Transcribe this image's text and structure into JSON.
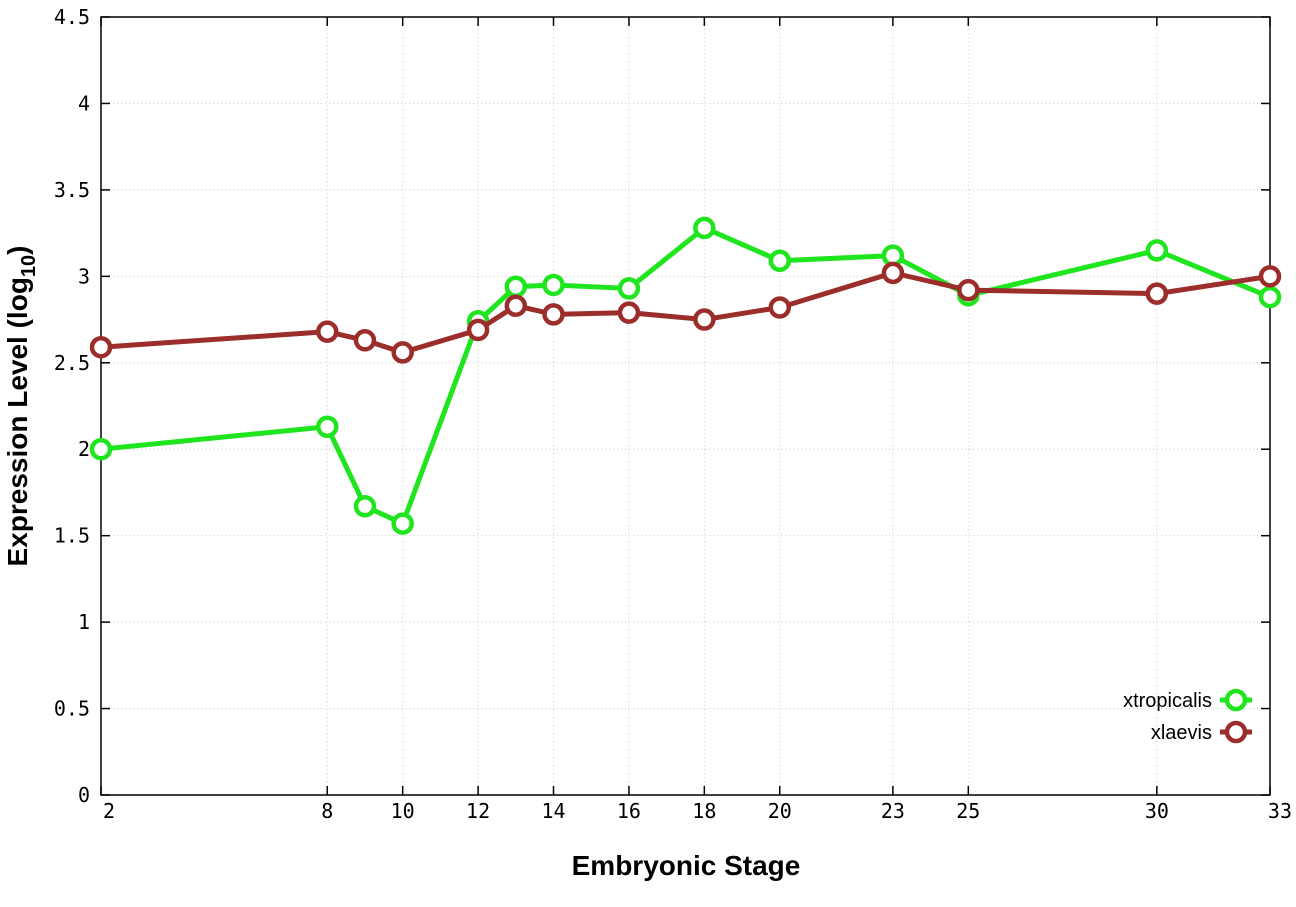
{
  "chart_data": {
    "type": "line",
    "title": "",
    "xlabel": "Embryonic Stage",
    "ylabel": "Expression Level (log",
    "ylabel_subscript": "10",
    "ylabel_suffix": ")",
    "x_ticks": [
      "2",
      "8",
      "10",
      "12",
      "14",
      "16",
      "18",
      "20",
      "23",
      "25",
      "30",
      "33"
    ],
    "y_ticks": [
      "0",
      "0.5",
      "1",
      "1.5",
      "2",
      "2.5",
      "3",
      "3.5",
      "4",
      "4.5"
    ],
    "xlim": [
      2,
      33
    ],
    "ylim": [
      0,
      4.5
    ],
    "grid": true,
    "legend_position": "bottom-right",
    "series": [
      {
        "name": "xtropicalis",
        "color": "#1fe51f",
        "x": [
          2,
          8,
          9,
          10,
          12,
          13,
          14,
          16,
          18,
          20,
          23,
          25,
          30,
          33
        ],
        "y": [
          2.0,
          2.13,
          1.67,
          1.57,
          2.74,
          2.94,
          2.95,
          2.93,
          3.28,
          3.09,
          3.12,
          2.89,
          3.15,
          2.88
        ]
      },
      {
        "name": "xlaevis",
        "color": "#9b2d2b",
        "x": [
          2,
          8,
          9,
          10,
          12,
          13,
          14,
          16,
          18,
          20,
          23,
          25,
          30,
          33
        ],
        "y": [
          2.59,
          2.68,
          2.63,
          2.56,
          2.69,
          2.83,
          2.78,
          2.79,
          2.75,
          2.82,
          3.02,
          2.92,
          2.9,
          3.0
        ]
      }
    ]
  }
}
